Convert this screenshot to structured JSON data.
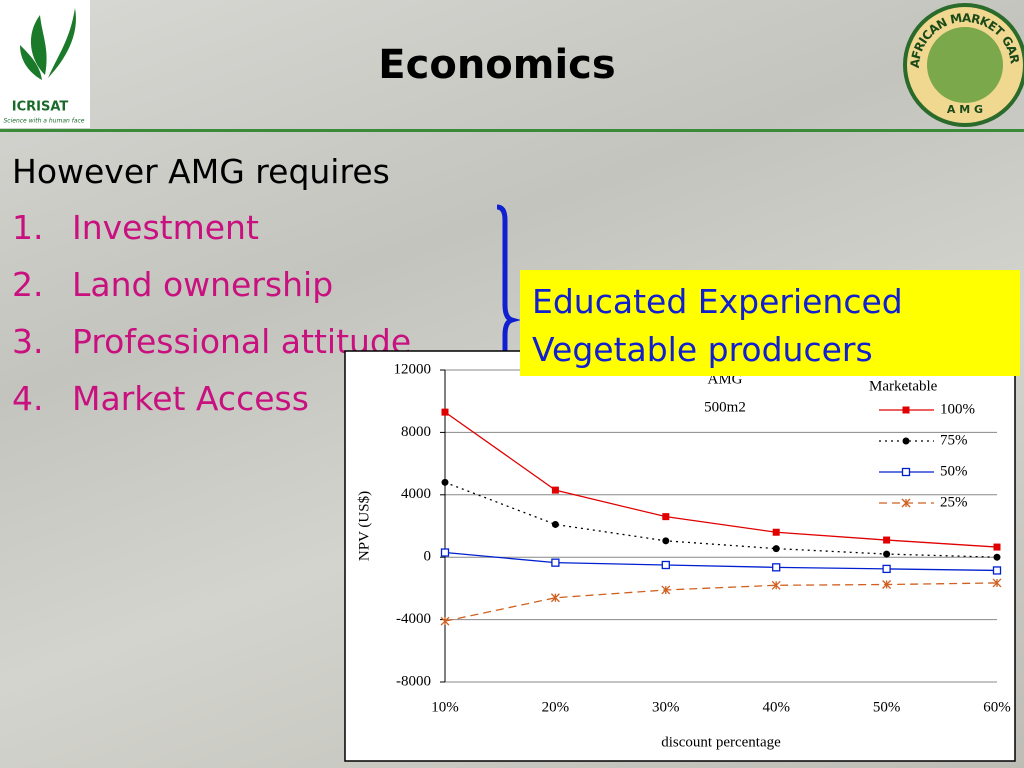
{
  "header": {
    "title": "Economics",
    "left_logo": {
      "name": "ICRISAT",
      "tagline": "Science with a human face"
    },
    "right_logo": {
      "ring_text": "AFRICAN MARKET GARDEN",
      "letters": "A M G"
    }
  },
  "list": {
    "intro": "However AMG requires",
    "items": [
      {
        "number": "1.",
        "text": "Investment"
      },
      {
        "number": "2.",
        "text": "Land ownership"
      },
      {
        "number": "3.",
        "text": "Professional attitude"
      },
      {
        "number": "4.",
        "text": "Market Access"
      }
    ]
  },
  "callout": {
    "lines": [
      "Educated Experienced",
      "Vegetable producers"
    ]
  },
  "chart_data": {
    "type": "line",
    "annotations": [
      "AMG",
      "500m2"
    ],
    "legend_title": "Marketable",
    "x_label": "discount percentage",
    "y_label": "NPV (US$)",
    "categories": [
      "10%",
      "20%",
      "30%",
      "40%",
      "50%",
      "60%"
    ],
    "series": [
      {
        "name": "100%",
        "color": "#e00000",
        "line_style": "solid",
        "marker": "square",
        "values": [
          9300,
          4300,
          2600,
          1600,
          1100,
          650
        ]
      },
      {
        "name": "75%",
        "color": "#000000",
        "line_style": "dotted",
        "marker": "circle",
        "values": [
          4800,
          2100,
          1050,
          550,
          200,
          0
        ]
      },
      {
        "name": "50%",
        "color": "#0020d0",
        "line_style": "solid",
        "marker": "open-square",
        "values": [
          300,
          -350,
          -500,
          -650,
          -750,
          -850
        ]
      },
      {
        "name": "25%",
        "color": "#d06020",
        "line_style": "dashed",
        "marker": "star",
        "values": [
          -4100,
          -2600,
          -2100,
          -1800,
          -1750,
          -1650
        ]
      }
    ],
    "ylim": [
      -8000,
      12000
    ],
    "yticks": [
      -8000,
      -4000,
      0,
      4000,
      8000,
      12000
    ],
    "grid": true,
    "legend": "upper right"
  }
}
